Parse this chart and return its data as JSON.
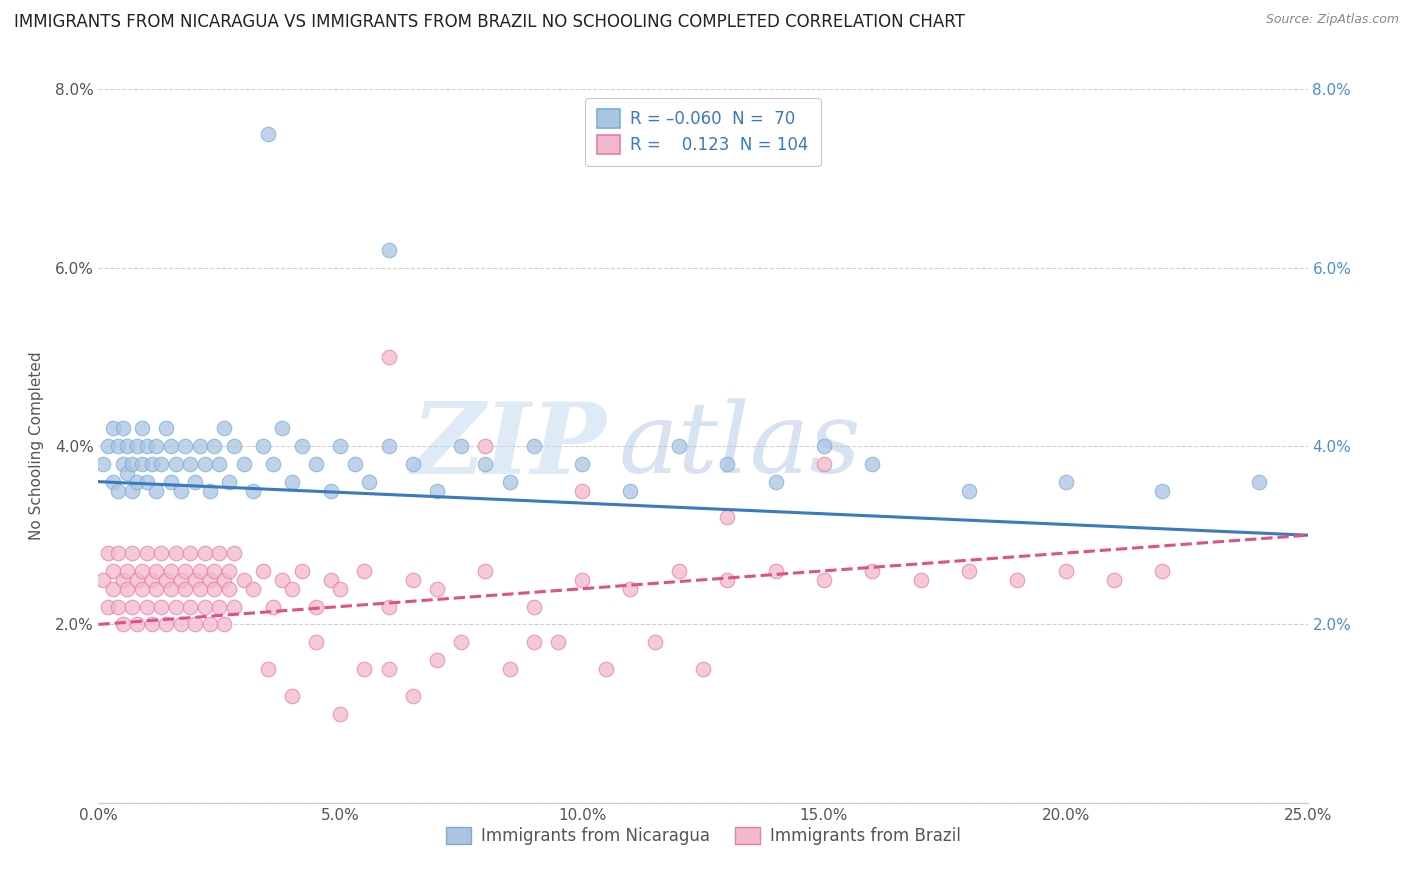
{
  "title": "IMMIGRANTS FROM NICARAGUA VS IMMIGRANTS FROM BRAZIL NO SCHOOLING COMPLETED CORRELATION CHART",
  "source": "Source: ZipAtlas.com",
  "ylabel": "No Schooling Completed",
  "x_min": 0.0,
  "x_max": 0.25,
  "y_min": 0.0,
  "y_max": 0.08,
  "x_ticks": [
    0.0,
    0.05,
    0.1,
    0.15,
    0.2,
    0.25
  ],
  "x_tick_labels": [
    "0.0%",
    "5.0%",
    "10.0%",
    "15.0%",
    "20.0%",
    "25.0%"
  ],
  "y_ticks": [
    0.0,
    0.02,
    0.04,
    0.06,
    0.08
  ],
  "y_tick_labels": [
    "",
    "2.0%",
    "4.0%",
    "6.0%",
    "8.0%"
  ],
  "y_ticks_right": [
    0.0,
    0.02,
    0.04,
    0.06,
    0.08
  ],
  "y_tick_labels_right": [
    "",
    "2.0%",
    "4.0%",
    "6.0%",
    "8.0%"
  ],
  "nicaragua_R": -0.06,
  "nicaragua_N": 70,
  "brazil_R": 0.123,
  "brazil_N": 104,
  "nicaragua_color": "#aac4e2",
  "nicaragua_edge": "#7aafd4",
  "brazil_color": "#f2b8cc",
  "brazil_edge": "#e87fa8",
  "nicaragua_line_color": "#3a7abf",
  "brazil_line_color": "#e0508a",
  "legend_label_nicaragua": "Immigrants from Nicaragua",
  "legend_label_brazil": "Immigrants from Brazil",
  "watermark_zip": "ZIP",
  "watermark_atlas": "atlas",
  "title_fontsize": 12,
  "axis_label_fontsize": 11,
  "tick_fontsize": 11,
  "legend_fontsize": 12,
  "nic_line_start_y": 0.036,
  "nic_line_end_y": 0.03,
  "bra_line_start_y": 0.02,
  "bra_line_end_y": 0.03,
  "nicaragua_x": [
    0.001,
    0.002,
    0.003,
    0.003,
    0.004,
    0.004,
    0.005,
    0.005,
    0.006,
    0.006,
    0.007,
    0.007,
    0.008,
    0.008,
    0.009,
    0.009,
    0.01,
    0.01,
    0.011,
    0.012,
    0.012,
    0.013,
    0.014,
    0.015,
    0.015,
    0.016,
    0.017,
    0.018,
    0.019,
    0.02,
    0.021,
    0.022,
    0.023,
    0.024,
    0.025,
    0.026,
    0.027,
    0.028,
    0.03,
    0.032,
    0.034,
    0.036,
    0.038,
    0.04,
    0.042,
    0.045,
    0.048,
    0.05,
    0.053,
    0.056,
    0.06,
    0.065,
    0.07,
    0.075,
    0.08,
    0.085,
    0.09,
    0.1,
    0.11,
    0.12,
    0.13,
    0.14,
    0.15,
    0.16,
    0.18,
    0.2,
    0.22,
    0.24,
    0.035,
    0.06
  ],
  "nicaragua_y": [
    0.038,
    0.04,
    0.036,
    0.042,
    0.035,
    0.04,
    0.038,
    0.042,
    0.037,
    0.04,
    0.035,
    0.038,
    0.036,
    0.04,
    0.038,
    0.042,
    0.036,
    0.04,
    0.038,
    0.035,
    0.04,
    0.038,
    0.042,
    0.036,
    0.04,
    0.038,
    0.035,
    0.04,
    0.038,
    0.036,
    0.04,
    0.038,
    0.035,
    0.04,
    0.038,
    0.042,
    0.036,
    0.04,
    0.038,
    0.035,
    0.04,
    0.038,
    0.042,
    0.036,
    0.04,
    0.038,
    0.035,
    0.04,
    0.038,
    0.036,
    0.04,
    0.038,
    0.035,
    0.04,
    0.038,
    0.036,
    0.04,
    0.038,
    0.035,
    0.04,
    0.038,
    0.036,
    0.04,
    0.038,
    0.035,
    0.036,
    0.035,
    0.036,
    0.075,
    0.062
  ],
  "brazil_x": [
    0.001,
    0.002,
    0.002,
    0.003,
    0.003,
    0.004,
    0.004,
    0.005,
    0.005,
    0.006,
    0.006,
    0.007,
    0.007,
    0.008,
    0.008,
    0.009,
    0.009,
    0.01,
    0.01,
    0.011,
    0.011,
    0.012,
    0.012,
    0.013,
    0.013,
    0.014,
    0.014,
    0.015,
    0.015,
    0.016,
    0.016,
    0.017,
    0.017,
    0.018,
    0.018,
    0.019,
    0.019,
    0.02,
    0.02,
    0.021,
    0.021,
    0.022,
    0.022,
    0.023,
    0.023,
    0.024,
    0.024,
    0.025,
    0.025,
    0.026,
    0.026,
    0.027,
    0.027,
    0.028,
    0.028,
    0.03,
    0.032,
    0.034,
    0.036,
    0.038,
    0.04,
    0.042,
    0.045,
    0.048,
    0.05,
    0.055,
    0.06,
    0.065,
    0.07,
    0.08,
    0.09,
    0.1,
    0.11,
    0.12,
    0.13,
    0.14,
    0.15,
    0.16,
    0.17,
    0.18,
    0.19,
    0.2,
    0.21,
    0.22,
    0.06,
    0.08,
    0.1,
    0.13,
    0.15,
    0.06,
    0.09,
    0.04,
    0.05,
    0.07,
    0.035,
    0.045,
    0.055,
    0.065,
    0.075,
    0.085,
    0.095,
    0.105,
    0.115,
    0.125
  ],
  "brazil_y": [
    0.025,
    0.028,
    0.022,
    0.026,
    0.024,
    0.028,
    0.022,
    0.025,
    0.02,
    0.026,
    0.024,
    0.028,
    0.022,
    0.025,
    0.02,
    0.026,
    0.024,
    0.028,
    0.022,
    0.025,
    0.02,
    0.026,
    0.024,
    0.028,
    0.022,
    0.025,
    0.02,
    0.026,
    0.024,
    0.028,
    0.022,
    0.025,
    0.02,
    0.026,
    0.024,
    0.028,
    0.022,
    0.025,
    0.02,
    0.026,
    0.024,
    0.028,
    0.022,
    0.025,
    0.02,
    0.026,
    0.024,
    0.028,
    0.022,
    0.025,
    0.02,
    0.026,
    0.024,
    0.028,
    0.022,
    0.025,
    0.024,
    0.026,
    0.022,
    0.025,
    0.024,
    0.026,
    0.022,
    0.025,
    0.024,
    0.026,
    0.022,
    0.025,
    0.024,
    0.026,
    0.022,
    0.025,
    0.024,
    0.026,
    0.025,
    0.026,
    0.025,
    0.026,
    0.025,
    0.026,
    0.025,
    0.026,
    0.025,
    0.026,
    0.05,
    0.04,
    0.035,
    0.032,
    0.038,
    0.015,
    0.018,
    0.012,
    0.01,
    0.016,
    0.015,
    0.018,
    0.015,
    0.012,
    0.018,
    0.015,
    0.018,
    0.015,
    0.018,
    0.015
  ]
}
